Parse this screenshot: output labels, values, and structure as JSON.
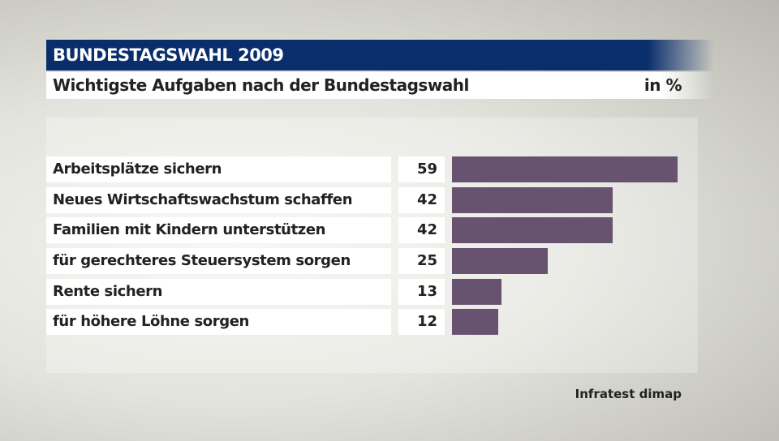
{
  "header": {
    "title": "BUNDESTAGSWAHL 2009",
    "subtitle": "Wichtigste Aufgaben nach der Bundestagswahl",
    "unit": "in %"
  },
  "chart_data": {
    "type": "bar",
    "orientation": "horizontal",
    "categories": [
      "Arbeitsplätze sichern",
      "Neues Wirtschaftswachstum schaffen",
      "Familien mit Kindern unterstützen",
      "für gerechteres Steuersystem sorgen",
      "Rente sichern",
      "für höhere Löhne sorgen"
    ],
    "values": [
      59,
      42,
      42,
      25,
      13,
      12
    ],
    "bar_color": "#67526f",
    "xlim": [
      0,
      59
    ]
  },
  "source": "Infratest dimap"
}
